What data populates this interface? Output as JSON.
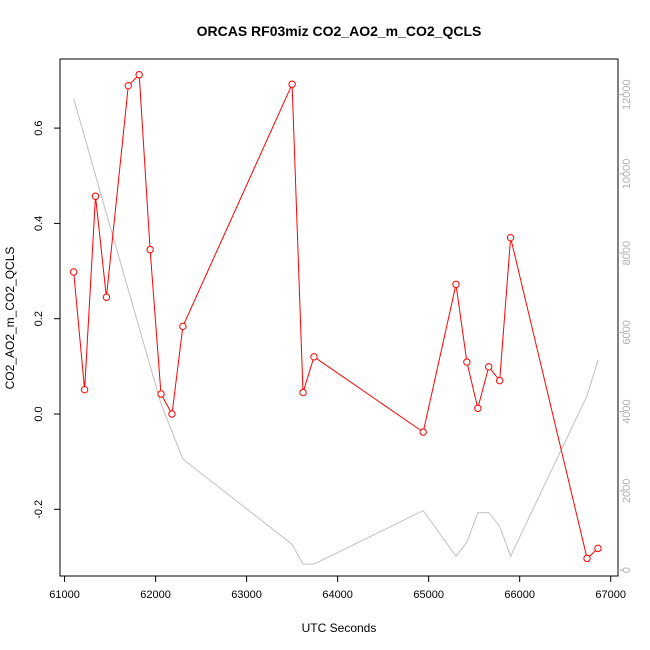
{
  "chart_data": {
    "type": "line",
    "title": "ORCAS RF03miz CO2_AO2_m_CO2_QCLS",
    "xlabel": "UTC Seconds",
    "ylabel": "CO2_AO2_m_CO2_QCLS",
    "xlim": [
      60950,
      67080
    ],
    "ylim": [
      -0.34,
      0.745
    ],
    "y2lim": [
      -150,
      12900
    ],
    "x_ticks": [
      61000,
      62000,
      63000,
      64000,
      65000,
      66000,
      67000
    ],
    "y_ticks": [
      -0.2,
      0.0,
      0.2,
      0.4,
      0.6
    ],
    "y2_ticks": [
      0,
      2000,
      4000,
      6000,
      8000,
      10000,
      12000
    ],
    "grid": false,
    "series": [
      {
        "axis": "left",
        "color": "#ff0000",
        "marker": "open-circle",
        "x": [
          61100,
          61220,
          61340,
          61460,
          61700,
          61820,
          61940,
          62060,
          62180,
          62300,
          63500,
          63620,
          63740,
          64940,
          65300,
          65420,
          65540,
          65660,
          65780,
          65900,
          66740,
          66860
        ],
        "y": [
          0.298,
          0.051,
          0.457,
          0.245,
          0.689,
          0.712,
          0.345,
          0.042,
          0.0,
          0.184,
          0.692,
          0.045,
          0.12,
          -0.038,
          0.272,
          0.109,
          0.012,
          0.099,
          0.07,
          0.37,
          -0.303,
          -0.282
        ]
      },
      {
        "axis": "right",
        "color": "#c0c0c0",
        "marker": "none",
        "x": [
          61100,
          61460,
          62060,
          62300,
          63500,
          63620,
          63740,
          64940,
          65300,
          65420,
          65540,
          65660,
          65780,
          65900,
          66740,
          66860
        ],
        "y": [
          11900,
          9000,
          4200,
          2800,
          650,
          150,
          150,
          1500,
          350,
          700,
          1450,
          1450,
          1100,
          350,
          4400,
          5300
        ]
      }
    ]
  }
}
